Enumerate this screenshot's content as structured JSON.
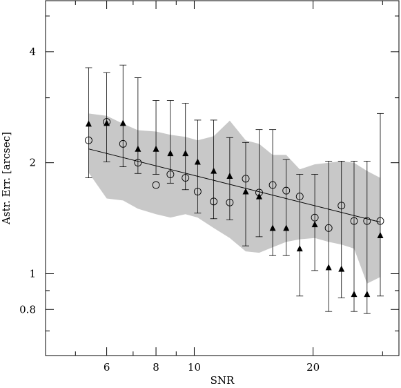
{
  "chart_data": {
    "type": "scatter",
    "title": "",
    "xlabel": "SNR",
    "ylabel": "Astr. Err. [arcsec]",
    "x_scale": "log",
    "y_scale": "log",
    "xlim": [
      4.2,
      33
    ],
    "ylim": [
      0.6,
      5.5
    ],
    "x_ticks": [
      {
        "value": 6,
        "label": "6"
      },
      {
        "value": 8,
        "label": "8"
      },
      {
        "value": 10,
        "label": "10"
      },
      {
        "value": 20,
        "label": "20"
      }
    ],
    "x_minor_ticks": [
      5,
      7,
      9,
      30
    ],
    "y_ticks": [
      {
        "value": 0.8,
        "label": "0.8"
      },
      {
        "value": 1,
        "label": "1"
      },
      {
        "value": 2,
        "label": "2"
      },
      {
        "value": 4,
        "label": "4"
      }
    ],
    "y_minor_ticks": [
      0.7,
      0.9,
      3,
      5
    ],
    "grid": false,
    "band": {
      "color": "#c8c8c8",
      "points": [
        [
          5.4,
          2.72
        ],
        [
          6.0,
          2.68
        ],
        [
          6.6,
          2.55
        ],
        [
          7.2,
          2.45
        ],
        [
          8.0,
          2.43
        ],
        [
          8.7,
          2.38
        ],
        [
          9.5,
          2.35
        ],
        [
          10.2,
          2.3
        ],
        [
          11.2,
          2.36
        ],
        [
          12.3,
          2.6
        ],
        [
          13.5,
          2.3
        ],
        [
          14.6,
          2.25
        ],
        [
          15.8,
          2.1
        ],
        [
          17.1,
          2.1
        ],
        [
          18.5,
          1.92
        ],
        [
          20.2,
          1.98
        ],
        [
          21.9,
          2.0
        ],
        [
          23.6,
          2.02
        ],
        [
          25.4,
          2.0
        ],
        [
          27.4,
          1.9
        ],
        [
          29.6,
          1.82
        ],
        [
          29.6,
          0.98
        ],
        [
          27.4,
          0.94
        ],
        [
          25.4,
          1.17
        ],
        [
          23.6,
          1.2
        ],
        [
          21.9,
          1.22
        ],
        [
          20.2,
          1.25
        ],
        [
          18.5,
          1.24
        ],
        [
          17.1,
          1.22
        ],
        [
          15.8,
          1.18
        ],
        [
          14.6,
          1.14
        ],
        [
          13.5,
          1.15
        ],
        [
          12.3,
          1.25
        ],
        [
          11.2,
          1.33
        ],
        [
          10.2,
          1.42
        ],
        [
          9.5,
          1.45
        ],
        [
          8.7,
          1.42
        ],
        [
          8.0,
          1.45
        ],
        [
          7.2,
          1.5
        ],
        [
          6.6,
          1.58
        ],
        [
          6.0,
          1.6
        ],
        [
          5.4,
          1.88
        ]
      ]
    },
    "fit_line": {
      "x": [
        5.4,
        29.6
      ],
      "y": [
        2.18,
        1.38
      ]
    },
    "series": [
      {
        "marker": "triangle",
        "x": [
          5.4,
          6.0,
          6.6,
          7.2,
          8.0,
          8.7,
          9.5,
          10.2,
          11.2,
          12.3,
          13.5,
          14.6,
          15.8,
          17.1,
          18.5,
          20.2,
          21.9,
          23.6,
          25.4,
          27.4,
          29.6
        ],
        "y": [
          2.55,
          2.56,
          2.56,
          2.18,
          2.18,
          2.12,
          2.12,
          2.01,
          1.9,
          1.84,
          1.67,
          1.62,
          1.33,
          1.33,
          1.17,
          1.36,
          1.04,
          1.03,
          0.88,
          0.88,
          1.27
        ]
      },
      {
        "marker": "circle",
        "x": [
          5.4,
          6.0,
          6.6,
          7.2,
          8.0,
          8.7,
          9.5,
          10.2,
          11.2,
          12.3,
          13.5,
          14.6,
          15.8,
          17.1,
          18.5,
          20.2,
          21.9,
          23.6,
          25.4,
          27.4,
          29.6
        ],
        "y": [
          2.3,
          2.58,
          2.25,
          2.0,
          1.74,
          1.86,
          1.82,
          1.67,
          1.57,
          1.56,
          1.81,
          1.66,
          1.74,
          1.68,
          1.62,
          1.42,
          1.33,
          1.53,
          1.39,
          1.39,
          1.39
        ],
        "err_low": [
          1.82,
          2.01,
          1.95,
          1.87,
          1.86,
          1.76,
          1.69,
          1.46,
          1.41,
          1.4,
          1.19,
          1.26,
          1.12,
          1.12,
          0.87,
          1.02,
          0.79,
          0.86,
          0.79,
          0.78,
          0.87
        ],
        "err_high": [
          3.62,
          3.51,
          3.68,
          3.4,
          2.95,
          2.95,
          2.9,
          2.61,
          2.61,
          2.34,
          2.27,
          2.46,
          2.46,
          2.04,
          1.86,
          1.86,
          2.02,
          2.02,
          2.02,
          2.02,
          2.72
        ]
      }
    ]
  }
}
